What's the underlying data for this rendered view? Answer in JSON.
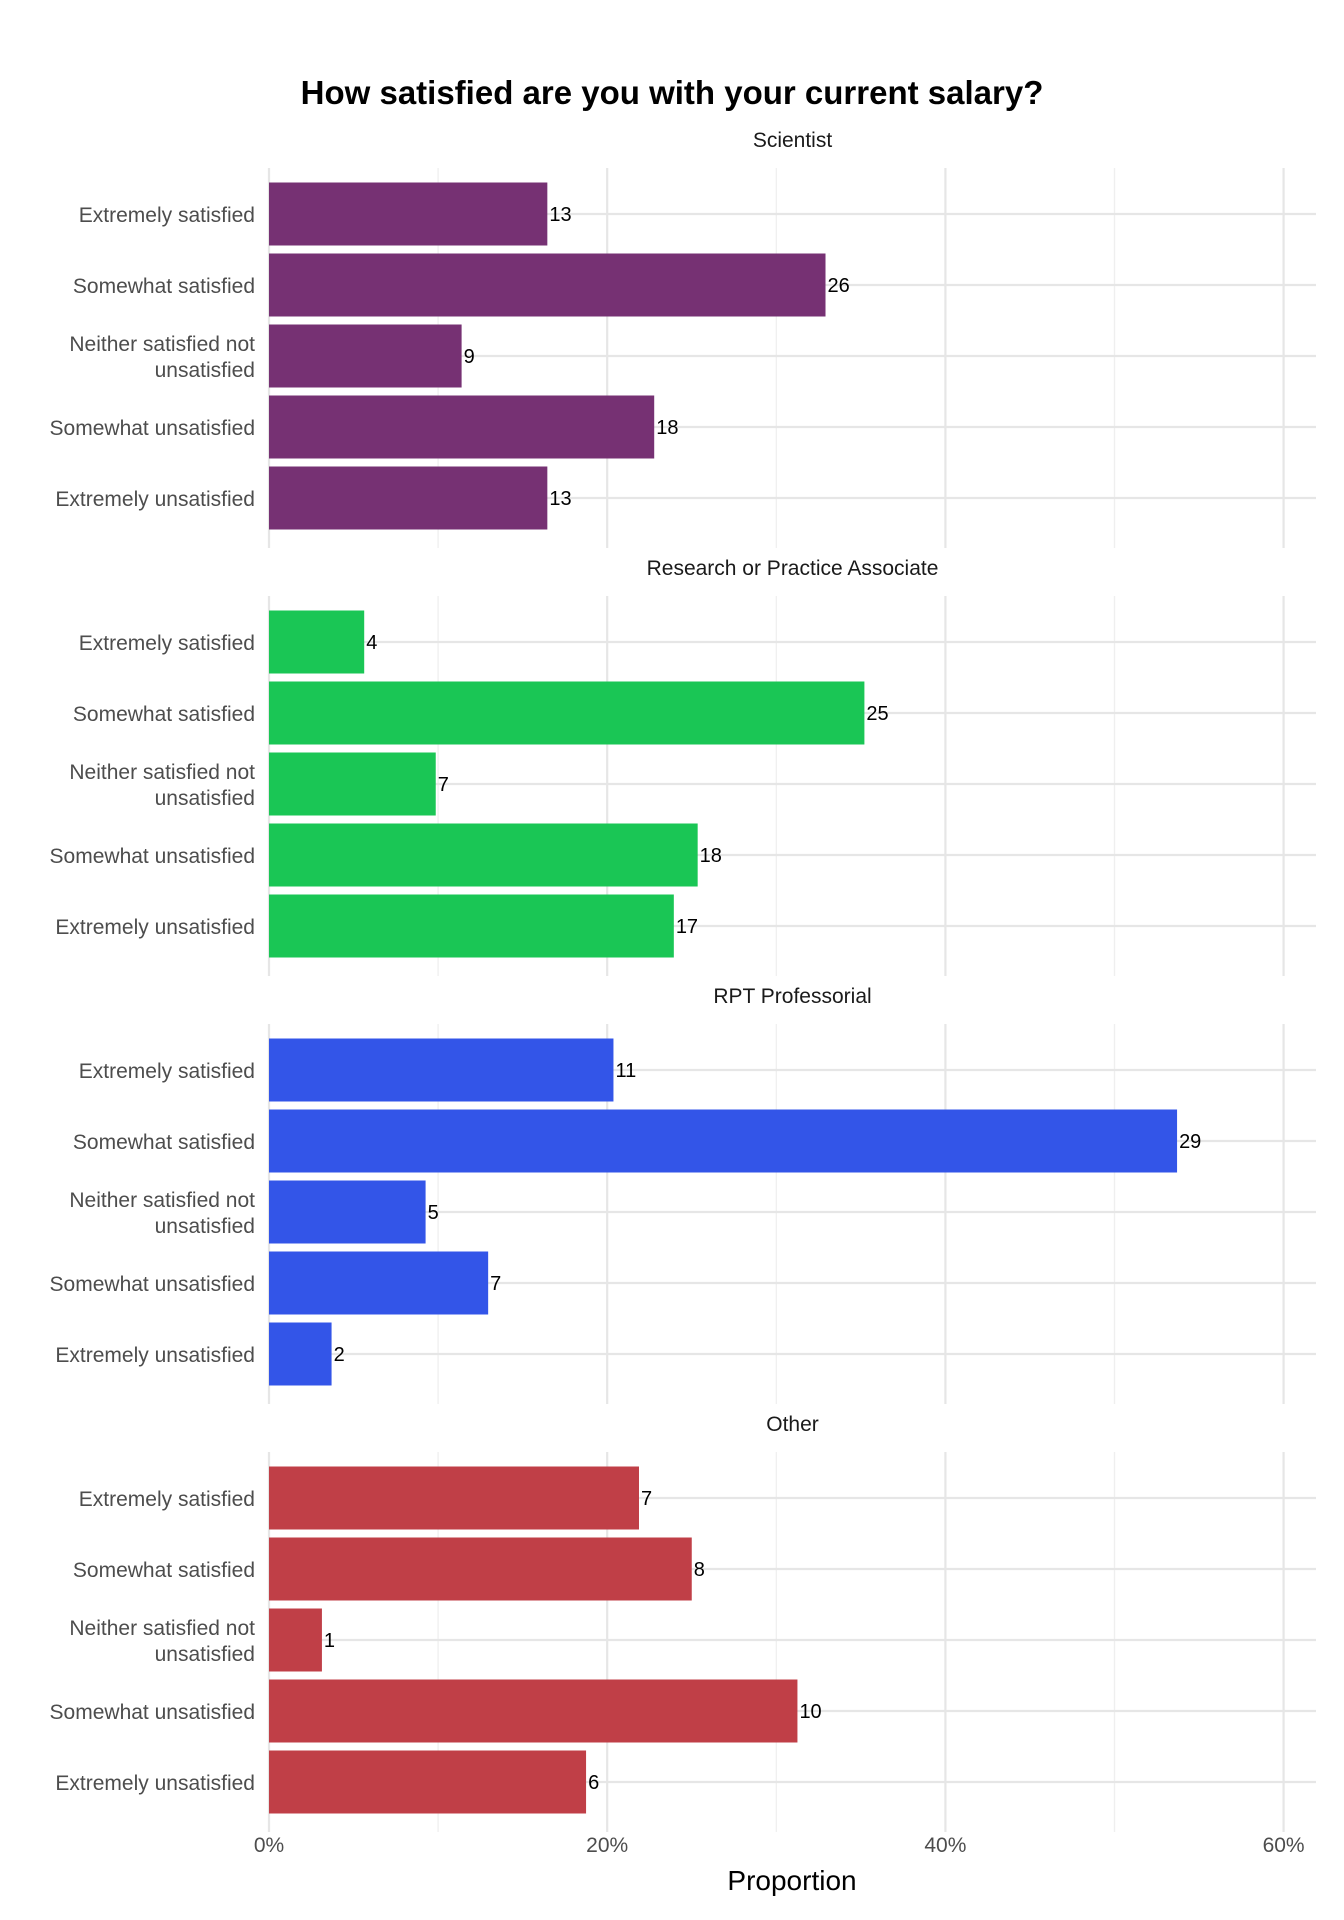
{
  "chart_data": {
    "type": "bar",
    "orientation": "horizontal",
    "title": "How satisfied are you with your current salary?",
    "xlabel": "Proportion",
    "ylabel": "",
    "x_ticks": [
      "0%",
      "20%",
      "40%",
      "60%"
    ],
    "xlim": [
      0,
      0.62
    ],
    "grid": true,
    "legend": "none",
    "categories": [
      "Extremely satisfied",
      "Somewhat satisfied",
      "Neither satisfied not unsatisfied",
      "Somewhat unsatisfied",
      "Extremely unsatisfied"
    ],
    "facets": [
      {
        "name": "Scientist",
        "color": "#763173",
        "counts": [
          13,
          26,
          9,
          18,
          13
        ],
        "proportions": [
          0.1646,
          0.3291,
          0.1139,
          0.2278,
          0.1646
        ]
      },
      {
        "name": "Research or Practice Associate",
        "color": "#1AC655",
        "counts": [
          4,
          25,
          7,
          18,
          17
        ],
        "proportions": [
          0.0563,
          0.3521,
          0.0986,
          0.2535,
          0.2394
        ]
      },
      {
        "name": "RPT Professorial",
        "color": "#3355E8",
        "counts": [
          11,
          29,
          5,
          7,
          2
        ],
        "proportions": [
          0.2037,
          0.537,
          0.0926,
          0.1296,
          0.037
        ]
      },
      {
        "name": "Other",
        "color": "#C03F47",
        "counts": [
          7,
          8,
          1,
          10,
          6
        ],
        "proportions": [
          0.2188,
          0.25,
          0.0313,
          0.3125,
          0.1875
        ]
      }
    ]
  }
}
